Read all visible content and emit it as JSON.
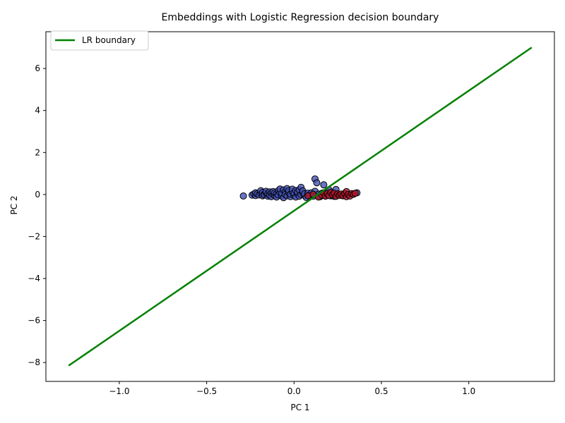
{
  "chart_data": {
    "type": "scatter",
    "title": "Embeddings with Logistic Regression decision boundary",
    "xlabel": "PC 1",
    "ylabel": "PC 2",
    "xlim": [
      -1.42,
      1.49
    ],
    "ylim": [
      -8.9,
      7.75
    ],
    "xticks": [
      -1.0,
      -0.5,
      0.0,
      0.5,
      1.0
    ],
    "xtick_labels": [
      "−1.0",
      "−0.5",
      "0.0",
      "0.5",
      "1.0"
    ],
    "yticks": [
      -8,
      -6,
      -4,
      -2,
      0,
      2,
      4,
      6
    ],
    "ytick_labels": [
      "−8",
      "−6",
      "−4",
      "−2",
      "0",
      "2",
      "4",
      "6"
    ],
    "grid": false,
    "legend_position": "top-left",
    "colors": {
      "class_a": "#4454b8",
      "class_b": "#b2182b",
      "boundary": "#008000",
      "point_edge": "#000000"
    },
    "boundary": {
      "name": "LR boundary",
      "x": [
        -1.29,
        1.36
      ],
      "y": [
        -8.15,
        7.0
      ]
    },
    "series": [
      {
        "values": [
          [
            -0.29,
            -0.07
          ],
          [
            -0.24,
            -0.03
          ],
          [
            -0.23,
            0.02
          ],
          [
            -0.22,
            -0.05
          ],
          [
            -0.22,
            0.08
          ],
          [
            -0.21,
            0.03
          ],
          [
            -0.2,
            -0.02
          ],
          [
            -0.19,
            0.05
          ],
          [
            -0.19,
            0.18
          ],
          [
            -0.18,
            -0.06
          ],
          [
            -0.18,
            0.1
          ],
          [
            -0.17,
            0.02
          ],
          [
            -0.17,
            -0.02
          ],
          [
            -0.16,
            0.07
          ],
          [
            -0.16,
            0.15
          ],
          [
            -0.15,
            -0.08
          ],
          [
            -0.15,
            0.04
          ],
          [
            -0.14,
            0.12
          ],
          [
            -0.14,
            -0.03
          ],
          [
            -0.13,
            0.06
          ],
          [
            -0.13,
            -0.1
          ],
          [
            -0.12,
            0.01
          ],
          [
            -0.12,
            0.14
          ],
          [
            -0.11,
            -0.05
          ],
          [
            -0.11,
            0.08
          ],
          [
            -0.1,
            0.03
          ],
          [
            -0.1,
            -0.12
          ],
          [
            -0.09,
            0.18
          ],
          [
            -0.09,
            -0.02
          ],
          [
            -0.08,
            0.1
          ],
          [
            -0.08,
            0.26
          ],
          [
            -0.07,
            -0.07
          ],
          [
            -0.07,
            0.05
          ],
          [
            -0.06,
            0.22
          ],
          [
            -0.06,
            -0.15
          ],
          [
            -0.05,
            0.12
          ],
          [
            -0.05,
            0.0
          ],
          [
            -0.04,
            0.28
          ],
          [
            -0.04,
            -0.06
          ],
          [
            -0.03,
            0.08
          ],
          [
            -0.03,
            0.18
          ],
          [
            -0.02,
            -0.1
          ],
          [
            -0.02,
            0.02
          ],
          [
            -0.01,
            0.14
          ],
          [
            -0.01,
            0.25
          ],
          [
            0.0,
            -0.04
          ],
          [
            0.0,
            0.07
          ],
          [
            0.01,
            0.19
          ],
          [
            0.01,
            -0.12
          ],
          [
            0.02,
            0.04
          ],
          [
            0.02,
            0.11
          ],
          [
            0.03,
            -0.08
          ],
          [
            0.03,
            0.22
          ],
          [
            0.04,
            0.0
          ],
          [
            0.04,
            0.34
          ],
          [
            0.05,
            0.09
          ],
          [
            0.05,
            0.17
          ],
          [
            0.06,
            -0.05
          ],
          [
            0.06,
            0.03
          ],
          [
            0.07,
            -0.14
          ],
          [
            0.08,
            0.06
          ],
          [
            0.09,
            -0.02
          ],
          [
            0.1,
            0.08
          ],
          [
            0.11,
            -0.08
          ],
          [
            0.12,
            0.74
          ],
          [
            0.12,
            0.15
          ],
          [
            0.13,
            0.56
          ],
          [
            0.13,
            -0.03
          ],
          [
            0.14,
            0.02
          ],
          [
            0.15,
            -0.1
          ],
          [
            0.16,
            0.06
          ],
          [
            0.17,
            0.46
          ],
          [
            0.18,
            -0.05
          ],
          [
            0.19,
            0.1
          ],
          [
            0.2,
            0.22
          ],
          [
            0.21,
            -0.06
          ],
          [
            0.22,
            0.04
          ],
          [
            0.23,
            -0.09
          ],
          [
            0.24,
            0.24
          ],
          [
            0.25,
            0.02
          ],
          [
            0.27,
            -0.04
          ],
          [
            0.29,
            0.01
          ],
          [
            0.36,
            0.08
          ]
        ],
        "color": "#4454b8"
      },
      {
        "values": [
          [
            0.08,
            -0.06
          ],
          [
            0.11,
            0.01
          ],
          [
            0.14,
            -0.12
          ],
          [
            0.16,
            -0.03
          ],
          [
            0.17,
            0.08
          ],
          [
            0.18,
            -0.08
          ],
          [
            0.19,
            0.04
          ],
          [
            0.2,
            -0.05
          ],
          [
            0.21,
            0.1
          ],
          [
            0.22,
            -0.02
          ],
          [
            0.23,
            0.06
          ],
          [
            0.24,
            -0.09
          ],
          [
            0.25,
            0.03
          ],
          [
            0.26,
            -0.04
          ],
          [
            0.27,
            0.02
          ],
          [
            0.28,
            -0.06
          ],
          [
            0.29,
            0.05
          ],
          [
            0.3,
            -0.1
          ],
          [
            0.3,
            0.14
          ],
          [
            0.31,
            0.0
          ],
          [
            0.32,
            -0.07
          ],
          [
            0.33,
            0.04
          ],
          [
            0.34,
            0.01
          ],
          [
            0.35,
            0.06
          ]
        ],
        "color": "#b2182b"
      }
    ]
  }
}
